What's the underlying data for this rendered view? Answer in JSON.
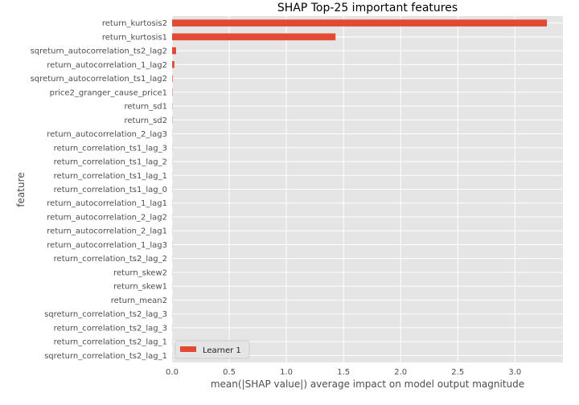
{
  "chart_data": {
    "type": "bar",
    "orientation": "horizontal",
    "title": "SHAP Top-25 important features",
    "xlabel": "mean(|SHAP value|) average impact on model output magnitude",
    "ylabel": "feature",
    "xlim": [
      0,
      3.42
    ],
    "x_ticks": [
      "0.0",
      "0.5",
      "1.0",
      "1.5",
      "2.0",
      "2.5",
      "3.0"
    ],
    "grid": true,
    "legend_placement": "lower-left",
    "categories": [
      "return_kurtosis2",
      "return_kurtosis1",
      "sqreturn_autocorrelation_ts2_lag2",
      "return_autocorrelation_1_lag2",
      "sqreturn_autocorrelation_ts1_lag2",
      "price2_granger_cause_price1",
      "return_sd1",
      "return_sd2",
      "return_autocorrelation_2_lag3",
      "return_correlation_ts1_lag_3",
      "return_correlation_ts1_lag_2",
      "return_correlation_ts1_lag_1",
      "return_correlation_ts1_lag_0",
      "return_autocorrelation_1_lag1",
      "return_autocorrelation_2_lag2",
      "return_autocorrelation_2_lag1",
      "return_autocorrelation_1_lag3",
      "return_correlation_ts2_lag_2",
      "return_skew2",
      "return_skew1",
      "return_mean2",
      "sqreturn_correlation_ts2_lag_3",
      "return_correlation_ts2_lag_3",
      "return_correlation_ts2_lag_1",
      "sqreturn_correlation_ts2_lag_1"
    ],
    "series": [
      {
        "name": "Learner 1",
        "color": "#e24a33",
        "values": [
          3.28,
          1.43,
          0.035,
          0.02,
          0.004,
          0.003,
          0.002,
          0.002,
          0.001,
          0.001,
          0.001,
          0.001,
          0.001,
          0.001,
          0.001,
          0.001,
          0.001,
          0.001,
          0.001,
          0.001,
          0.001,
          0.001,
          0.001,
          0.001,
          0.001
        ]
      }
    ]
  },
  "colors": {
    "plot_background": "#e5e5e5",
    "grid": "#ffffff",
    "bar": "#e24a33",
    "text": "#4d4d4d"
  }
}
